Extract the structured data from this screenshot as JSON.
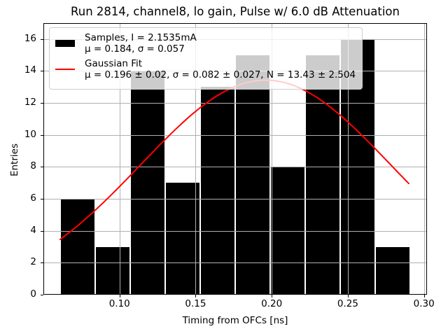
{
  "chart_data": {
    "type": "histogram",
    "title": "Run 2814, channel8, lo gain, Pulse w/ 6.0 dB Attenuation",
    "xlabel": "Timing from OFCs [ns]",
    "ylabel": "Entries",
    "xlim": [
      0.05,
      0.302
    ],
    "ylim": [
      0,
      17
    ],
    "xticks": [
      0.1,
      0.15,
      0.2,
      0.25,
      0.3
    ],
    "xtick_labels": [
      "0.10",
      "0.15",
      "0.20",
      "0.25",
      "0.30"
    ],
    "yticks": [
      0,
      2,
      4,
      6,
      8,
      10,
      12,
      14,
      16
    ],
    "ytick_labels": [
      "0",
      "2",
      "4",
      "6",
      "8",
      "10",
      "12",
      "14",
      "16"
    ],
    "grid": true,
    "grid_color": "#b0b0b0",
    "bar_color": "#000000",
    "fit_color": "#ff0000",
    "bin_edges": [
      0.061,
      0.084,
      0.107,
      0.13,
      0.153,
      0.176,
      0.199,
      0.222,
      0.245,
      0.268,
      0.291
    ],
    "counts": [
      6,
      3,
      14,
      7,
      13,
      15,
      8,
      15,
      16,
      3
    ],
    "gaussian_fit": {
      "mu": 0.196,
      "sigma": 0.082,
      "amplitude": 13.43,
      "x_start": 0.061,
      "x_end": 0.29
    },
    "legend": {
      "position": "upper left",
      "entries": [
        {
          "swatch": "black-filled-rect",
          "line1": "Samples, I = 2.1535mA",
          "line2": "μ = 0.184, σ = 0.057"
        },
        {
          "swatch": "red-line",
          "line1": "Gaussian Fit",
          "line2": "μ = 0.196 ± 0.02, σ = 0.082 ± 0.027, N = 13.43 ± 2.504"
        }
      ]
    }
  }
}
